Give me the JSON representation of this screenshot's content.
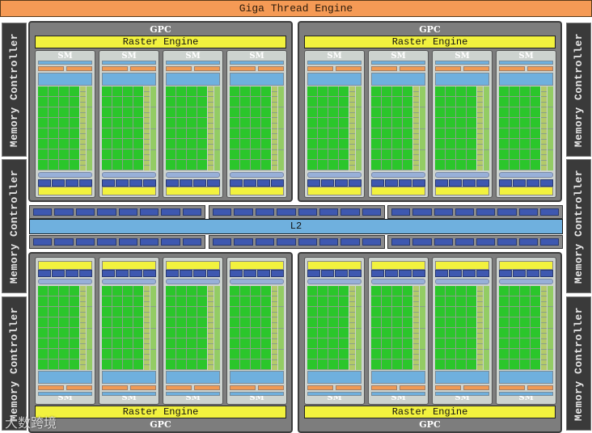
{
  "title": "Giga Thread Engine",
  "memory_controllers": {
    "left": [
      "Memory Controller",
      "Memory Controller",
      "Memory Controller"
    ],
    "right": [
      "Memory Controller",
      "Memory Controller",
      "Memory Controller"
    ]
  },
  "gpcs": [
    {
      "label": "GPC",
      "raster": "Raster Engine",
      "sms": [
        "SM",
        "SM",
        "SM",
        "SM"
      ],
      "position": "top-left"
    },
    {
      "label": "GPC",
      "raster": "Raster Engine",
      "sms": [
        "SM",
        "SM",
        "SM",
        "SM"
      ],
      "position": "top-right"
    },
    {
      "label": "GPC",
      "raster": "Raster Engine",
      "sms": [
        "SM",
        "SM",
        "SM",
        "SM"
      ],
      "position": "bottom-left"
    },
    {
      "label": "GPC",
      "raster": "Raster Engine",
      "sms": [
        "SM",
        "SM",
        "SM",
        "SM"
      ],
      "position": "bottom-right"
    }
  ],
  "l2": {
    "label": "L2",
    "strips_per_row": 3,
    "blocks_per_strip": 8
  },
  "sm_structure": {
    "core_columns": 4,
    "core_rows": 8,
    "ldst_units": 16,
    "sfu_units": 4,
    "texture_units": 4
  },
  "colors": {
    "giga_thread_engine": "#f59a55",
    "memory_controller": "#3a3a3a",
    "gpc": "#7d7d7d",
    "raster_engine": "#f2f23e",
    "sm": "#cdd3cf",
    "core": "#2bc62b",
    "cache": "#6fb0de",
    "texture": "#3e58b0"
  },
  "watermark": "大数跨境"
}
